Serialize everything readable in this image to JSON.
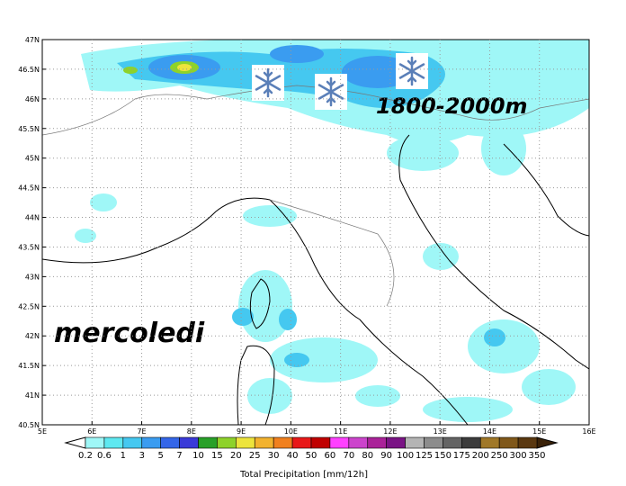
{
  "map": {
    "lon_labels": [
      "5E",
      "6E",
      "7E",
      "8E",
      "9E",
      "10E",
      "11E",
      "12E",
      "13E",
      "14E",
      "15E",
      "16E"
    ],
    "lat_labels": [
      "47N",
      "46.5N",
      "46N",
      "45.5N",
      "45N",
      "44.5N",
      "44N",
      "43.5N",
      "43N",
      "42.5N",
      "42N",
      "41.5N",
      "41N",
      "40.5N"
    ],
    "annotations": {
      "snow_level": "1800-2000m",
      "day": "mercoledi"
    }
  },
  "legend": {
    "title": "Total Precipitation [mm/12h]",
    "labels": [
      "0.2",
      "0.6",
      "1",
      "3",
      "5",
      "7",
      "10",
      "15",
      "20",
      "25",
      "30",
      "40",
      "50",
      "60",
      "70",
      "80",
      "90",
      "100",
      "125",
      "150",
      "175",
      "200",
      "250",
      "300",
      "350"
    ],
    "colors": [
      "#9ff7f7",
      "#5ee8f0",
      "#45c8f0",
      "#3a9cf0",
      "#3466e8",
      "#3a3ad8",
      "#28a028",
      "#8ed22a",
      "#ede43c",
      "#f2b22e",
      "#f0801e",
      "#e81818",
      "#c00000",
      "#ff40ff",
      "#cc44cc",
      "#aa2299",
      "#7a1485",
      "#b4b4b4",
      "#8c8c8c",
      "#646464",
      "#3c3c3c",
      "#a07828",
      "#80581a",
      "#5a3810"
    ]
  }
}
